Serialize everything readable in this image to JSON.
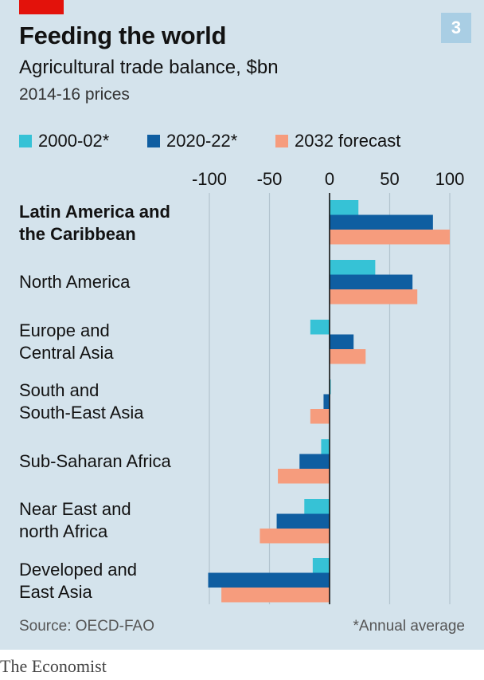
{
  "header": {
    "title": "Feeding the world",
    "subtitle": "Agricultural trade balance, $bn",
    "note": "2014-16 prices",
    "badge": "3"
  },
  "footer": {
    "source": "Source: OECD-FAO",
    "footnote": "*Annual average",
    "brand": "The Economist"
  },
  "colors": {
    "background": "#d4e3ec",
    "accent_red": "#e3120b",
    "series_2000": "#36c2d6",
    "series_2020": "#0f5ea1",
    "series_2032": "#f69c7d",
    "gridline": "#b3c4cf",
    "zero_line": "#121212"
  },
  "chart_data": {
    "type": "bar",
    "orientation": "horizontal",
    "categories": [
      "Latin America and\nthe Caribbean",
      "North America",
      "Europe and\nCentral Asia",
      "South and\nSouth-East Asia",
      "Sub-Saharan Africa",
      "Near East and\nnorth Africa",
      "Developed and\nEast Asia"
    ],
    "bold_categories": [
      0
    ],
    "series": [
      {
        "name": "2000-02*",
        "color": "#36c2d6",
        "values": [
          24,
          38,
          -16,
          1,
          -7,
          -21,
          -14
        ]
      },
      {
        "name": "2020-22*",
        "color": "#0f5ea1",
        "values": [
          86,
          69,
          20,
          -5,
          -25,
          -44,
          -101
        ]
      },
      {
        "name": "2032 forecast",
        "color": "#f69c7d",
        "values": [
          100,
          73,
          30,
          -16,
          -43,
          -58,
          -90
        ]
      }
    ],
    "xticks": [
      -100,
      -50,
      0,
      50,
      100
    ],
    "xtick_labels": [
      "-100",
      "-50",
      "0",
      "50",
      "100"
    ],
    "xlim": [
      -101,
      100
    ],
    "grid": true,
    "legend_position": "top"
  }
}
